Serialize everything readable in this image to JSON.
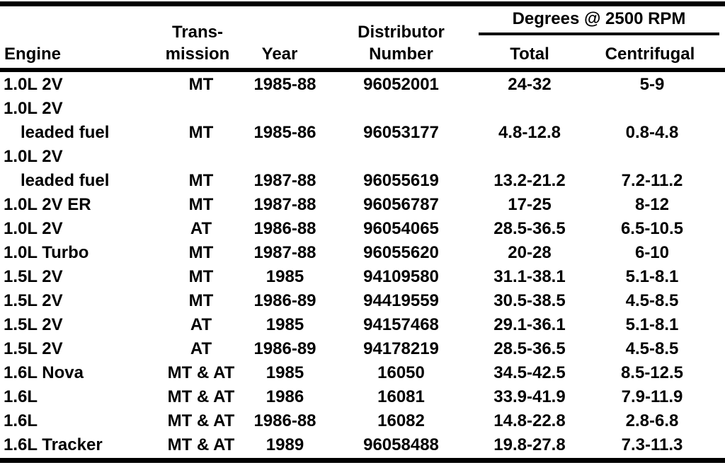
{
  "table": {
    "headers": {
      "engine": "Engine",
      "transmission_line1": "Trans-",
      "transmission_line2": "mission",
      "year": "Year",
      "distributor_line1": "Distributor",
      "distributor_line2": "Number",
      "degrees_group": "Degrees @ 2500 RPM",
      "total": "Total",
      "centrifugal": "Centrifugal"
    },
    "rows": [
      {
        "engine": "1.0L 2V",
        "transmission": "MT",
        "year": "1985-88",
        "distributor_number": "96052001",
        "total": "24-32",
        "centrifugal": "5-9"
      },
      {
        "engine": "1.0L 2V",
        "engine_line2": "leaded fuel",
        "transmission": "MT",
        "year": "1985-86",
        "distributor_number": "96053177",
        "total": "4.8-12.8",
        "centrifugal": "0.8-4.8"
      },
      {
        "engine": "1.0L 2V",
        "engine_line2": "leaded fuel",
        "transmission": "MT",
        "year": "1987-88",
        "distributor_number": "96055619",
        "total": "13.2-21.2",
        "centrifugal": "7.2-11.2"
      },
      {
        "engine": "1.0L 2V ER",
        "transmission": "MT",
        "year": "1987-88",
        "distributor_number": "96056787",
        "total": "17-25",
        "centrifugal": "8-12"
      },
      {
        "engine": "1.0L 2V",
        "transmission": "AT",
        "year": "1986-88",
        "distributor_number": "96054065",
        "total": "28.5-36.5",
        "centrifugal": "6.5-10.5"
      },
      {
        "engine": "1.0L Turbo",
        "transmission": "MT",
        "year": "1987-88",
        "distributor_number": "96055620",
        "total": "20-28",
        "centrifugal": "6-10"
      },
      {
        "engine": "1.5L 2V",
        "transmission": "MT",
        "year": "1985",
        "distributor_number": "94109580",
        "total": "31.1-38.1",
        "centrifugal": "5.1-8.1"
      },
      {
        "engine": "1.5L 2V",
        "transmission": "MT",
        "year": "1986-89",
        "distributor_number": "94419559",
        "total": "30.5-38.5",
        "centrifugal": "4.5-8.5"
      },
      {
        "engine": "1.5L 2V",
        "transmission": "AT",
        "year": "1985",
        "distributor_number": "94157468",
        "total": "29.1-36.1",
        "centrifugal": "5.1-8.1"
      },
      {
        "engine": "1.5L 2V",
        "transmission": "AT",
        "year": "1986-89",
        "distributor_number": "94178219",
        "total": "28.5-36.5",
        "centrifugal": "4.5-8.5"
      },
      {
        "engine": "1.6L Nova",
        "transmission": "MT & AT",
        "year": "1985",
        "distributor_number": "16050",
        "total": "34.5-42.5",
        "centrifugal": "8.5-12.5"
      },
      {
        "engine": "1.6L",
        "transmission": "MT & AT",
        "year": "1986",
        "distributor_number": "16081",
        "total": "33.9-41.9",
        "centrifugal": "7.9-11.9"
      },
      {
        "engine": "1.6L",
        "transmission": "MT & AT",
        "year": "1986-88",
        "distributor_number": "16082",
        "total": "14.8-22.8",
        "centrifugal": "2.8-6.8"
      },
      {
        "engine": "1.6L Tracker",
        "transmission": "MT & AT",
        "year": "1989",
        "distributor_number": "96058488",
        "total": "19.8-27.8",
        "centrifugal": "7.3-11.3"
      }
    ]
  },
  "colors": {
    "text": "#000000",
    "background": "#ffffff",
    "rule": "#000000"
  }
}
